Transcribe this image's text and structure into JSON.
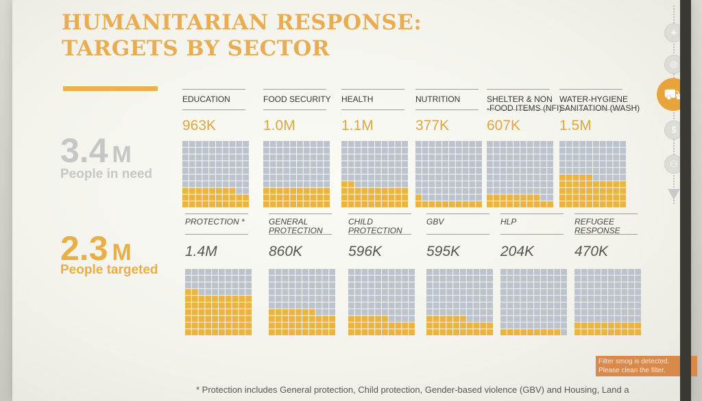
{
  "title": {
    "line1": "HUMANITARIAN RESPONSE:",
    "line2": "TARGETS BY SECTOR"
  },
  "summary": {
    "in_need": {
      "value": "3.4",
      "unit": "M",
      "label": "People in need"
    },
    "targeted": {
      "value": "2.3",
      "unit": "M",
      "label": "People targeted"
    }
  },
  "colors": {
    "filled": "#e9b43f",
    "empty": "#bcc3cd",
    "accent": "#e9a33b"
  },
  "row1": [
    {
      "name1": "EDUCATION",
      "name2": "",
      "value": "963K",
      "fill": 0.28
    },
    {
      "name1": "FOOD SECURITY",
      "name2": "",
      "value": "1.0M",
      "fill": 0.3
    },
    {
      "name1": "HEALTH",
      "name2": "",
      "value": "1.1M",
      "fill": 0.32
    },
    {
      "name1": "NUTRITION",
      "name2": "",
      "value": "377K",
      "fill": 0.11
    },
    {
      "name1": "SHELTER & NON",
      "name2": "-FOOD ITEMS (NFI)",
      "value": "607K",
      "fill": 0.18
    },
    {
      "name1": "WATER-HYGIENE",
      "name2": "SANITATION (WASH)",
      "value": "1.5M",
      "fill": 0.45
    }
  ],
  "row2": [
    {
      "name1": "PROTECTION *",
      "name2": "",
      "value": "1.4M",
      "fill": 0.62
    },
    {
      "name1": "GENERAL",
      "name2": "PROTECTION",
      "value": "860K",
      "fill": 0.37
    },
    {
      "name1": "CHILD",
      "name2": "PROTECTION",
      "value": "596K",
      "fill": 0.26
    },
    {
      "name1": "GBV",
      "name2": "",
      "value": "595K",
      "fill": 0.26
    },
    {
      "name1": "HLP",
      "name2": "",
      "value": "204K",
      "fill": 0.09
    },
    {
      "name1": "REFUGEE",
      "name2": "RESPONSE",
      "value": "470K",
      "fill": 0.2
    }
  ],
  "nav_icons": [
    "sun-icon",
    "search-icon",
    "truck-icon",
    "money-bag-icon",
    "people-icon"
  ],
  "footnote": "* Protection includes General protection, Child protection, Gender-based violence (GBV) and Housing, Land a",
  "warning": {
    "line1": "Filter smog is detected.",
    "line2": "Please clean the filter."
  }
}
